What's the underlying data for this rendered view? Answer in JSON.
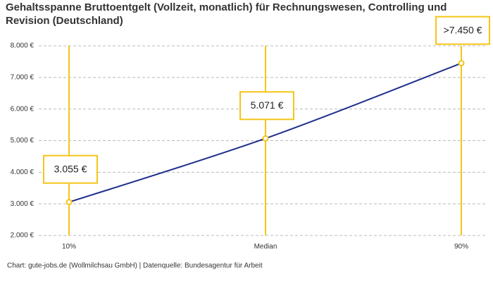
{
  "chart_data": {
    "type": "line",
    "title": "Gehaltsspanne Bruttoentgelt (Vollzeit, monatlich) für Rechnungswesen, Controlling und Revision (Deutschland)",
    "categories": [
      "10%",
      "Median",
      "90%"
    ],
    "values": [
      3055,
      5071,
      7450
    ],
    "value_labels": [
      "3.055 €",
      "5.071 €",
      ">7.450 €"
    ],
    "color": "#1f2f8c",
    "marker_color": "#f5c518",
    "ylim": [
      2000,
      8000
    ],
    "yticks": [
      {
        "value": 2000,
        "label": "2.000 €"
      },
      {
        "value": 3000,
        "label": "3.000 €"
      },
      {
        "value": 4000,
        "label": "4.000 €"
      },
      {
        "value": 5000,
        "label": "5.000 €"
      },
      {
        "value": 6000,
        "label": "6.000 €"
      },
      {
        "value": 7000,
        "label": "7.000 €"
      },
      {
        "value": 8000,
        "label": "8.000 €"
      }
    ],
    "grid": true,
    "footer": "Chart: gute-jobs.de (Wollmilchsau GmbH) | Datenquelle: Bundesagentur für Arbeit"
  }
}
